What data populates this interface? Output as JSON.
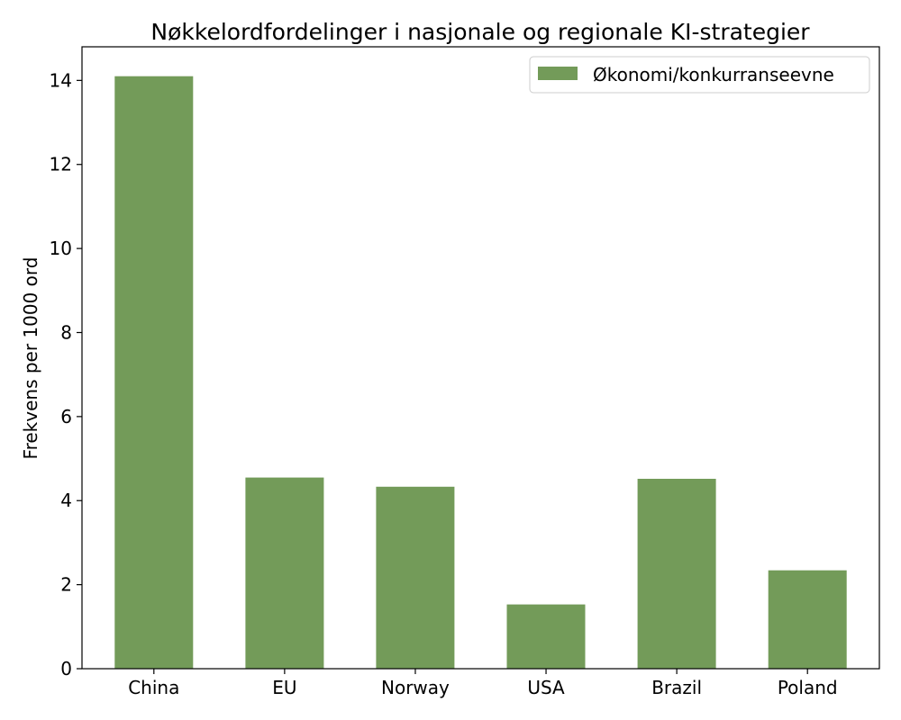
{
  "chart_data": {
    "type": "bar",
    "title": "Nøkkelordfordelinger i nasjonale og regionale KI-strategier",
    "xlabel": "",
    "ylabel": "Frekvens per 1000 ord",
    "categories": [
      "China",
      "EU",
      "Norway",
      "USA",
      "Brazil",
      "Poland"
    ],
    "series": [
      {
        "name": "Økonomi/konkurranseevne",
        "values": [
          14.1,
          4.55,
          4.33,
          1.53,
          4.52,
          2.34
        ],
        "color": "#739b59"
      }
    ],
    "ylim": [
      0,
      14.8
    ],
    "yticks": [
      0,
      2,
      4,
      6,
      8,
      10,
      12,
      14
    ],
    "grid": false,
    "legend_position": "top-right"
  }
}
